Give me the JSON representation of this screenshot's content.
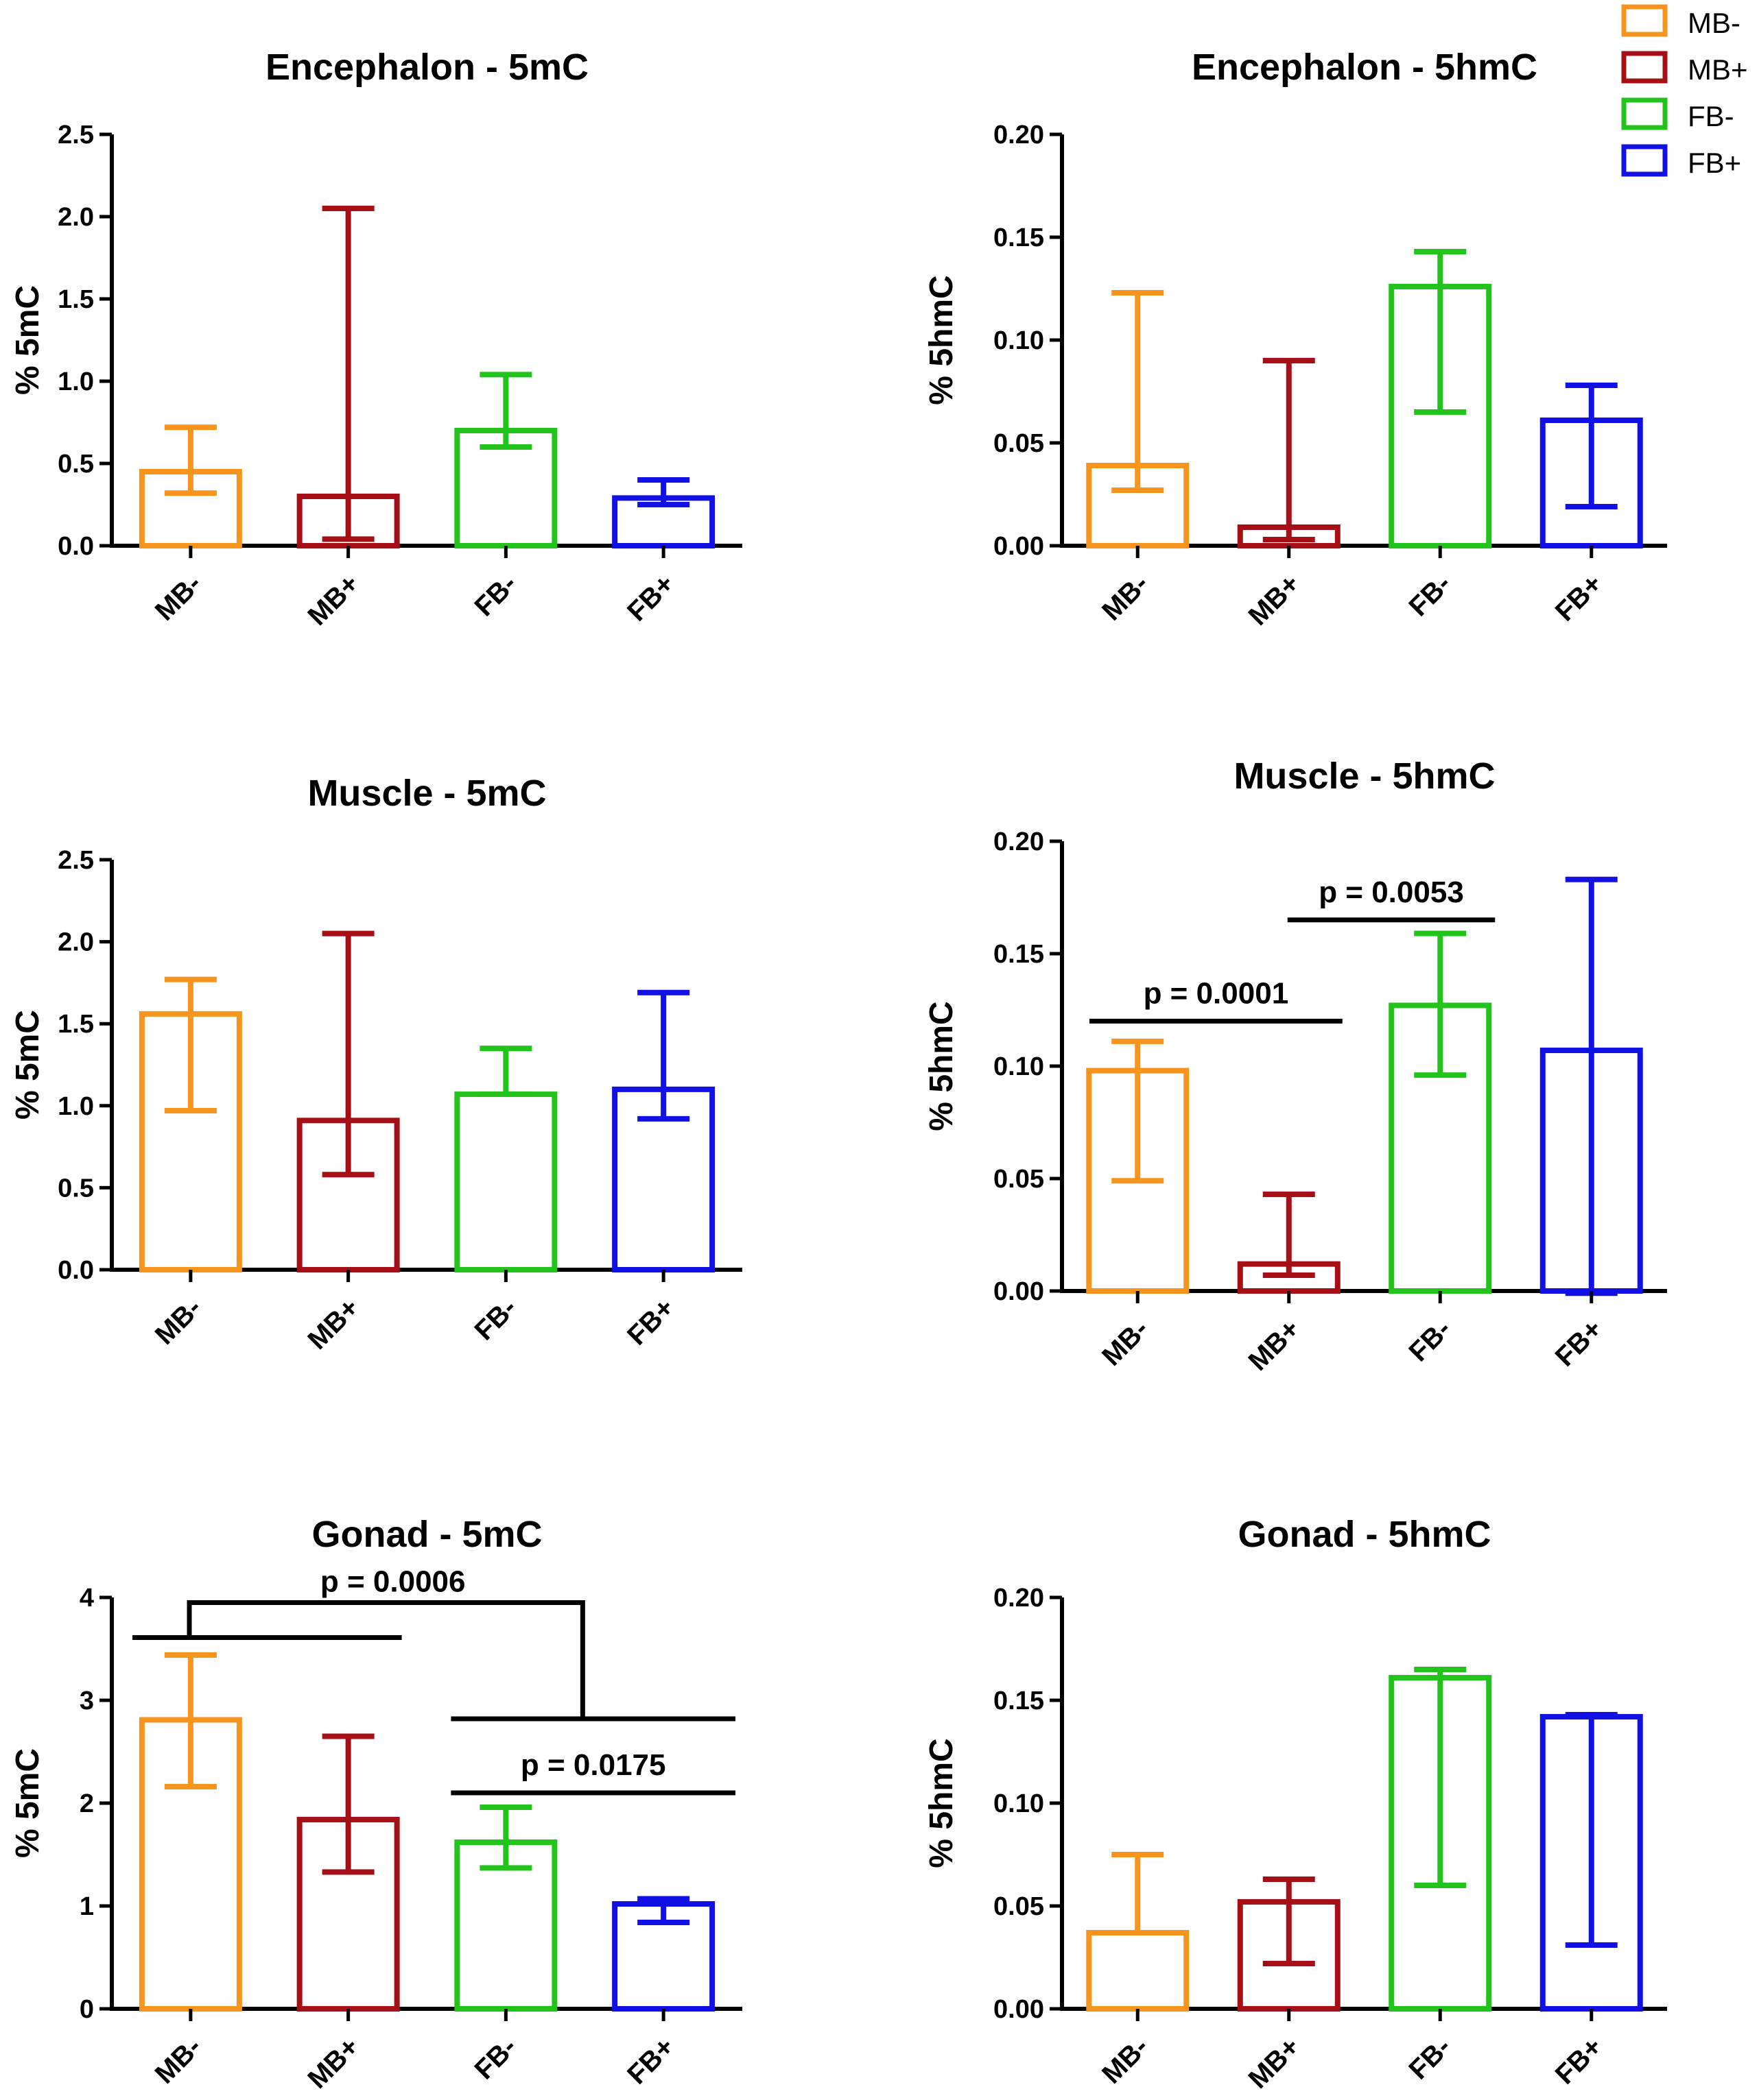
{
  "colors": {
    "MB-": "#f7941d",
    "MB+": "#a50f15",
    "FB-": "#22c41b",
    "FB+": "#1111e6",
    "axis": "#000000"
  },
  "legend": {
    "items": [
      {
        "label": "MB-",
        "color_key": "MB-"
      },
      {
        "label": "MB+",
        "color_key": "MB+"
      },
      {
        "label": "FB-",
        "color_key": "FB-"
      },
      {
        "label": "FB+",
        "color_key": "FB+"
      }
    ]
  },
  "chart_data": [
    {
      "type": "bar",
      "title": "Encephalon - 5mC",
      "ylabel": "% 5mC",
      "ylim": [
        0,
        2.5
      ],
      "yticks": [
        "0.0",
        "0.5",
        "1.0",
        "1.5",
        "2.0",
        "2.5"
      ],
      "categories": [
        "MB-",
        "MB+",
        "FB-",
        "FB+"
      ],
      "values": [
        0.45,
        0.3,
        0.7,
        0.29
      ],
      "error_low": [
        0.32,
        0.04,
        0.6,
        0.25
      ],
      "error_high": [
        0.72,
        2.05,
        1.04,
        0.4
      ],
      "significance": []
    },
    {
      "type": "bar",
      "title": "Encephalon - 5hmC",
      "ylabel": "% 5hmC",
      "ylim": [
        0,
        0.2
      ],
      "yticks": [
        "0.00",
        "0.05",
        "0.10",
        "0.15",
        "0.20"
      ],
      "categories": [
        "MB-",
        "MB+",
        "FB-",
        "FB+"
      ],
      "values": [
        0.039,
        0.009,
        0.126,
        0.061
      ],
      "error_low": [
        0.027,
        0.003,
        0.065,
        0.019
      ],
      "error_high": [
        0.123,
        0.09,
        0.143,
        0.078
      ],
      "significance": []
    },
    {
      "type": "bar",
      "title": "Muscle - 5mC",
      "ylabel": "% 5mC",
      "ylim": [
        0,
        2.5
      ],
      "yticks": [
        "0.0",
        "0.5",
        "1.0",
        "1.5",
        "2.0",
        "2.5"
      ],
      "categories": [
        "MB-",
        "MB+",
        "FB-",
        "FB+"
      ],
      "values": [
        1.56,
        0.91,
        1.07,
        1.1
      ],
      "error_low": [
        0.97,
        0.58,
        1.07,
        0.92
      ],
      "error_high": [
        1.77,
        2.05,
        1.35,
        1.69
      ],
      "significance": []
    },
    {
      "type": "bar",
      "title": "Muscle - 5hmC",
      "ylabel": "% 5hmC",
      "ylim": [
        0,
        0.2
      ],
      "yticks": [
        "0.00",
        "0.05",
        "0.10",
        "0.15",
        "0.20"
      ],
      "categories": [
        "MB-",
        "MB+",
        "FB-",
        "FB+"
      ],
      "values": [
        0.098,
        0.012,
        0.127,
        0.107
      ],
      "error_low": [
        0.049,
        0.007,
        0.096,
        -0.001
      ],
      "error_high": [
        0.111,
        0.043,
        0.159,
        0.183
      ],
      "significance": [
        {
          "label": "p = 0.0001",
          "from": 0,
          "to": 1.5,
          "y": 0.12,
          "bracket": "line"
        },
        {
          "label": "p = 0.0053",
          "from": 1.7,
          "to": 2.5,
          "y": 0.165,
          "bracket": "line"
        }
      ]
    },
    {
      "type": "bar",
      "title": "Gonad - 5mC",
      "ylabel": "% 5mC",
      "ylim": [
        0,
        4
      ],
      "yticks": [
        "0",
        "1",
        "2",
        "3",
        "4"
      ],
      "categories": [
        "MB-",
        "MB+",
        "FB-",
        "FB+"
      ],
      "values": [
        2.81,
        1.84,
        1.62,
        1.02
      ],
      "error_low": [
        2.16,
        1.33,
        1.37,
        0.84
      ],
      "error_high": [
        3.44,
        2.65,
        1.96,
        1.07
      ],
      "significance": [
        {
          "label": "p = 0.0006",
          "type": "nested",
          "left_from": 0,
          "left_to": 1.5,
          "left_y": 3.61,
          "right_from": 1.7,
          "right_to": 3.5,
          "right_y": 2.82,
          "top_y": 3.95
        },
        {
          "label": "p = 0.0175",
          "from": 1.7,
          "to": 3.5,
          "y": 2.1,
          "bracket": "line"
        }
      ]
    },
    {
      "type": "bar",
      "title": "Gonad - 5hmC",
      "ylabel": "% 5hmC",
      "ylim": [
        0,
        0.2
      ],
      "yticks": [
        "0.00",
        "0.05",
        "0.10",
        "0.15",
        "0.20"
      ],
      "categories": [
        "MB-",
        "MB+",
        "FB-",
        "FB+"
      ],
      "values": [
        0.037,
        0.052,
        0.161,
        0.142
      ],
      "error_low": [
        0.037,
        0.022,
        0.06,
        0.031
      ],
      "error_high": [
        0.075,
        0.063,
        0.165,
        0.143
      ],
      "significance": []
    }
  ]
}
